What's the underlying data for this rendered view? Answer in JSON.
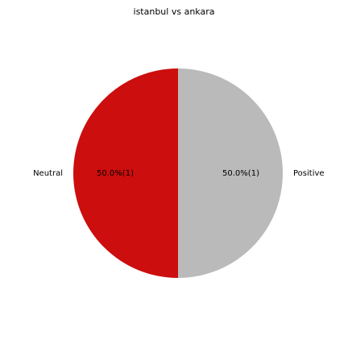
{
  "chart_data": {
    "type": "pie",
    "title": "istanbul vs ankara",
    "slices": [
      {
        "label": "Neutral",
        "value": 1,
        "percent_label": "50.0%(1)",
        "color": "#cc0e0e"
      },
      {
        "label": "Positive",
        "value": 1,
        "percent_label": "50.0%(1)",
        "color": "#bababa"
      }
    ],
    "start_angle_deg": 90,
    "direction": "counterclockwise",
    "legend": "none"
  }
}
